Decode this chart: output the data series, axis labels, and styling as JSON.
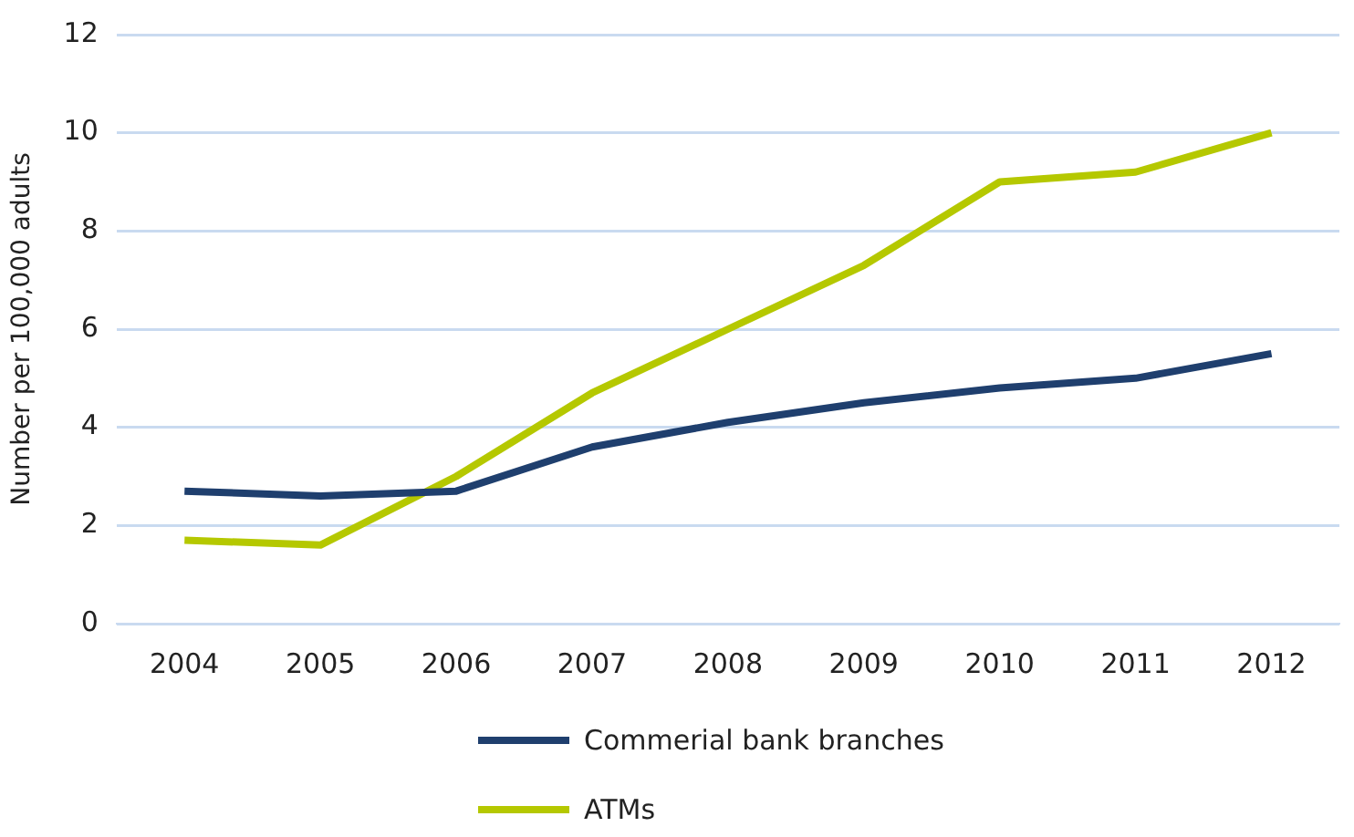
{
  "chart_data": {
    "type": "line",
    "ylabel": "Number per 100,000 adults",
    "categories": [
      "2004",
      "2005",
      "2006",
      "2007",
      "2008",
      "2009",
      "2010",
      "2011",
      "2012"
    ],
    "series": [
      {
        "name": "Commerial bank branches",
        "color": "#1f3f6e",
        "values": [
          2.7,
          2.6,
          2.7,
          3.6,
          4.1,
          4.5,
          4.8,
          5.0,
          5.5
        ]
      },
      {
        "name": "ATMs",
        "color": "#b5c800",
        "values": [
          1.7,
          1.6,
          3.0,
          4.7,
          6.0,
          7.3,
          9.0,
          9.2,
          10.0
        ]
      }
    ],
    "ylim": [
      0,
      12
    ],
    "yticks": [
      0,
      2,
      4,
      6,
      8,
      10,
      12
    ],
    "grid": "y",
    "legend": "bottom",
    "marker": "none",
    "line_style": "solid"
  }
}
